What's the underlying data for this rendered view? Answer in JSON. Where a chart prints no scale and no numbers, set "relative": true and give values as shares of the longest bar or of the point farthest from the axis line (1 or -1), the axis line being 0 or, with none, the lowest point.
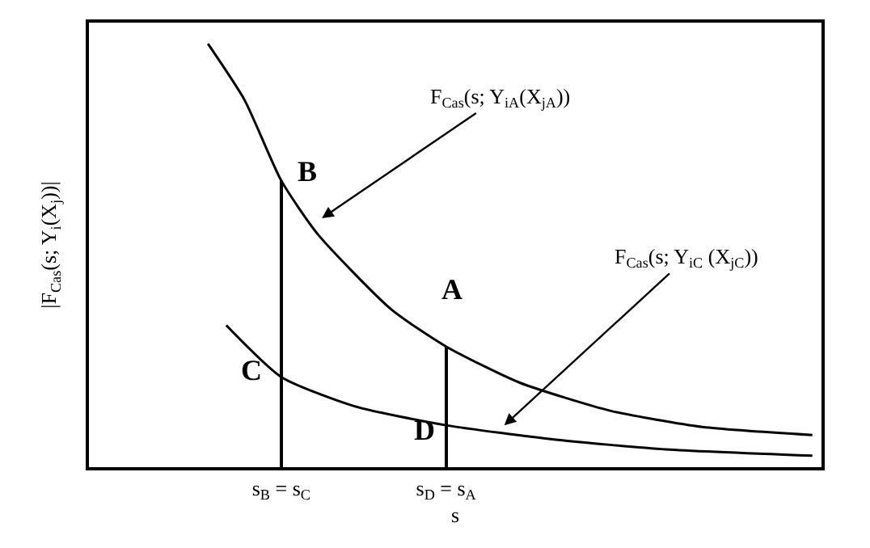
{
  "chart_data": {
    "type": "line",
    "relative": true,
    "xlabel": "s",
    "ylabel": "|F$_{Cas}$(s; Y$_{i}$(X$_{j}$))|",
    "categories": [
      null,
      null,
      null,
      null,
      null,
      null,
      null,
      null,
      null,
      null,
      "s$_{B}$ = s$_{C}$",
      null,
      null,
      null,
      null,
      null,
      null,
      null,
      null,
      "s$_{D}$ = s$_{A}$",
      null,
      null,
      null,
      null,
      null,
      null,
      null,
      null,
      null,
      null,
      null,
      null,
      null,
      null,
      null,
      null,
      null,
      null,
      null,
      null
    ],
    "series": [
      {
        "color": "#000000",
        "values": [
          null,
          null,
          null,
          null,
          null,
          null,
          1,
          null,
          0.867,
          null,
          0.677,
          null,
          0.55,
          null,
          null,
          null,
          0.373,
          null,
          null,
          0.285,
          null,
          null,
          null,
          0.2,
          null,
          null,
          null,
          null,
          0.133,
          null,
          null,
          null,
          null,
          0.095,
          null,
          null,
          null,
          null,
          null,
          0.076
        ]
      },
      {
        "color": "#000000",
        "values": [
          null,
          null,
          null,
          null,
          null,
          null,
          null,
          0.335,
          null,
          null,
          0.213,
          null,
          null,
          null,
          0.144,
          null,
          null,
          null,
          null,
          0.099,
          null,
          null,
          null,
          null,
          null,
          0.065,
          null,
          null,
          null,
          null,
          null,
          0.042,
          null,
          null,
          null,
          null,
          null,
          null,
          null,
          0.027
        ]
      },
      {
        "type": "bar",
        "color": "#000000",
        "values": [
          null,
          null,
          null,
          null,
          null,
          null,
          null,
          null,
          null,
          null,
          0.677,
          null,
          null,
          null,
          null,
          null,
          null,
          null,
          null,
          0.285,
          null,
          null,
          null,
          null,
          null,
          null,
          null,
          null,
          null,
          null,
          null,
          null,
          null,
          null,
          null,
          null,
          null,
          null,
          null,
          null
        ]
      }
    ],
    "annotations": [
      "F$_{Cas}$(s; Y$_{iA}$(X$_{jA}$))",
      "F$_{Cas}$(s; Y$_{iC}$ (X$_{jC}$))",
      "B",
      "A",
      "C",
      "D"
    ]
  }
}
